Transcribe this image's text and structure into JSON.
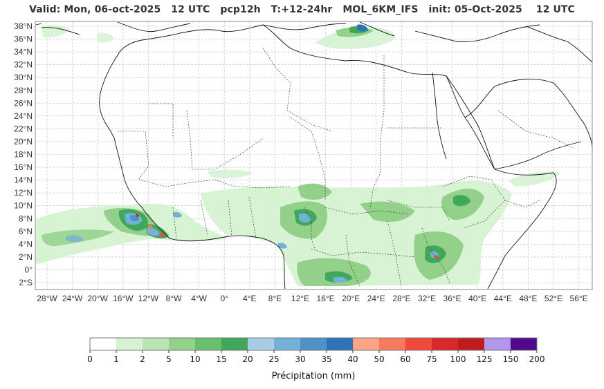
{
  "title": "Valid: Mon, 06-oct-2025   12 UTC   pcp12h   T:+12-24hr   MOL_6KM_IFS   init: 05-Oct-2025    12 UTC",
  "lat_labels": [
    "38°N",
    "36°N",
    "34°N",
    "32°N",
    "30°N",
    "28°N",
    "26°N",
    "24°N",
    "22°N",
    "20°N",
    "18°N",
    "16°N",
    "14°N",
    "12°N",
    "10°N",
    "8°N",
    "6°N",
    "4°N",
    "2°N",
    "0°",
    "2°S"
  ],
  "lon_labels": [
    "28°W",
    "24°W",
    "20°W",
    "16°W",
    "12°W",
    "8°W",
    "4°W",
    "0°",
    "4°E",
    "8°E",
    "12°E",
    "16°E",
    "20°E",
    "24°E",
    "28°E",
    "32°E",
    "36°E",
    "40°E",
    "44°E",
    "48°E",
    "52°E",
    "56°E"
  ],
  "colorbar": {
    "ticks": [
      "0",
      "1",
      "2",
      "5",
      "10",
      "15",
      "20",
      "25",
      "30",
      "35",
      "40",
      "50",
      "60",
      "75",
      "100",
      "125",
      "150",
      "200"
    ],
    "colors": [
      "#ffffff",
      "#d5f2d2",
      "#b9e4b3",
      "#93d18b",
      "#69bf6e",
      "#3fa85a",
      "#a6cde3",
      "#74b1d9",
      "#4d93c8",
      "#2c74b5",
      "#fca388",
      "#f87a5e",
      "#ef4a3c",
      "#d7292a",
      "#c21b1e",
      "#b196ec",
      "#4e0a8a"
    ],
    "label": "Précipitation (mm)"
  }
}
